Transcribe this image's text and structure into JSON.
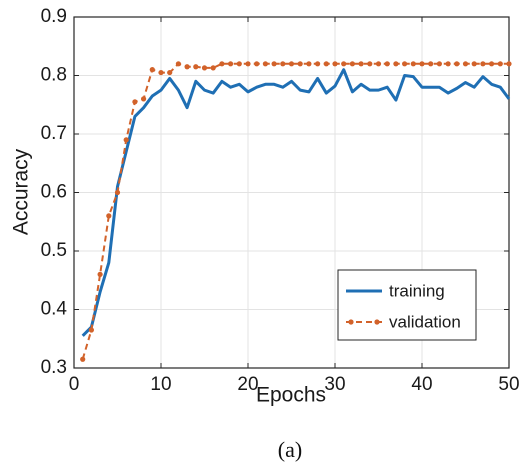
{
  "chart_data": {
    "type": "line",
    "caption": "(a)",
    "xlabel": "Epochs",
    "ylabel": "Accuracy",
    "xlim": [
      0,
      50
    ],
    "ylim": [
      0.3,
      0.9
    ],
    "x_ticks": [
      0,
      10,
      20,
      30,
      40,
      50
    ],
    "y_ticks": [
      0.3,
      0.4,
      0.5,
      0.6,
      0.7,
      0.8,
      0.9
    ],
    "x_tick_labels": [
      "0",
      "10",
      "20",
      "30",
      "40",
      "50"
    ],
    "y_tick_labels": [
      "0.3",
      "0.4",
      "0.5",
      "0.6",
      "0.7",
      "0.8",
      "0.9"
    ],
    "grid": true,
    "legend_placement": "lower-right",
    "x": [
      1,
      2,
      3,
      4,
      5,
      6,
      7,
      8,
      9,
      10,
      11,
      12,
      13,
      14,
      15,
      16,
      17,
      18,
      19,
      20,
      21,
      22,
      23,
      24,
      25,
      26,
      27,
      28,
      29,
      30,
      31,
      32,
      33,
      34,
      35,
      36,
      37,
      38,
      39,
      40,
      41,
      42,
      43,
      44,
      45,
      46,
      47,
      48,
      49,
      50
    ],
    "series": [
      {
        "name": "training",
        "color": "#1f6fb4",
        "style": "solid",
        "values": [
          0.355,
          0.37,
          0.43,
          0.48,
          0.61,
          0.67,
          0.73,
          0.745,
          0.765,
          0.775,
          0.795,
          0.775,
          0.745,
          0.79,
          0.775,
          0.77,
          0.79,
          0.78,
          0.785,
          0.772,
          0.78,
          0.785,
          0.785,
          0.78,
          0.79,
          0.775,
          0.772,
          0.795,
          0.77,
          0.782,
          0.81,
          0.772,
          0.785,
          0.775,
          0.775,
          0.78,
          0.758,
          0.8,
          0.798,
          0.78,
          0.78,
          0.78,
          0.77,
          0.778,
          0.788,
          0.78,
          0.798,
          0.785,
          0.78,
          0.76
        ]
      },
      {
        "name": "validation",
        "color": "#d2622a",
        "style": "dashed",
        "values": [
          0.315,
          0.365,
          0.46,
          0.56,
          0.6,
          0.69,
          0.755,
          0.76,
          0.81,
          0.805,
          0.805,
          0.82,
          0.815,
          0.815,
          0.813,
          0.813,
          0.82,
          0.82,
          0.82,
          0.82,
          0.82,
          0.82,
          0.82,
          0.82,
          0.82,
          0.82,
          0.82,
          0.82,
          0.82,
          0.82,
          0.82,
          0.82,
          0.82,
          0.82,
          0.82,
          0.82,
          0.82,
          0.82,
          0.82,
          0.82,
          0.82,
          0.82,
          0.82,
          0.82,
          0.82,
          0.82,
          0.82,
          0.82,
          0.82,
          0.82
        ]
      }
    ]
  }
}
